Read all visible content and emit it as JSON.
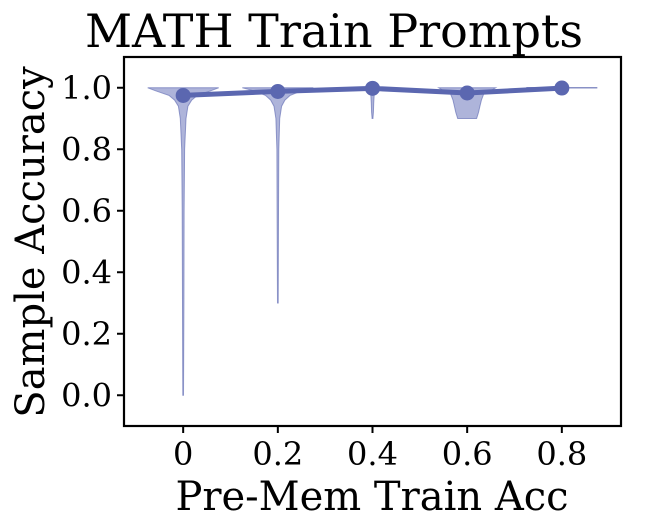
{
  "chart_data": {
    "type": "violin",
    "title": "MATH Train Prompts",
    "xlabel": "Pre-Mem Train Acc",
    "ylabel": "Sample Accuracy",
    "xlim": [
      -0.125,
      0.925
    ],
    "ylim": [
      -0.1,
      1.1
    ],
    "x_ticks": [
      "0",
      "0.2",
      "0.4",
      "0.6",
      "0.8"
    ],
    "y_ticks": [
      "0.0",
      "0.2",
      "0.4",
      "0.6",
      "0.8",
      "1.0"
    ],
    "grid": false,
    "legend": "none",
    "series": [
      {
        "type": "line",
        "x": [
          0.0,
          0.2,
          0.4,
          0.6,
          0.8
        ],
        "y": [
          0.975,
          0.988,
          0.998,
          0.983,
          0.999
        ]
      }
    ],
    "violins": [
      {
        "x": 0.0,
        "min": 0.0,
        "max": 1.0,
        "profile": [
          [
            1.0,
            0.075
          ],
          [
            0.99,
            0.058
          ],
          [
            0.975,
            0.03
          ],
          [
            0.96,
            0.018
          ],
          [
            0.94,
            0.01
          ],
          [
            0.9,
            0.006
          ],
          [
            0.8,
            0.003
          ],
          [
            0.6,
            0.002
          ],
          [
            0.3,
            0.0015
          ],
          [
            0.0,
            0.0008
          ]
        ]
      },
      {
        "x": 0.2,
        "min": 0.3,
        "max": 1.0,
        "profile": [
          [
            1.0,
            0.075
          ],
          [
            0.99,
            0.05
          ],
          [
            0.975,
            0.026
          ],
          [
            0.96,
            0.015
          ],
          [
            0.94,
            0.008
          ],
          [
            0.9,
            0.004
          ],
          [
            0.8,
            0.002
          ],
          [
            0.6,
            0.0015
          ],
          [
            0.3,
            0.0008
          ]
        ]
      },
      {
        "x": 0.4,
        "min": 0.9,
        "max": 1.0,
        "profile": [
          [
            1.0,
            0.012
          ],
          [
            0.99,
            0.004
          ],
          [
            0.95,
            0.0025
          ],
          [
            0.92,
            0.002
          ],
          [
            0.9,
            0.0008
          ]
        ]
      },
      {
        "x": 0.6,
        "min": 0.9,
        "max": 1.0,
        "profile": [
          [
            1.0,
            0.06
          ],
          [
            0.99,
            0.05
          ],
          [
            0.98,
            0.035
          ],
          [
            0.96,
            0.03
          ],
          [
            0.94,
            0.027
          ],
          [
            0.92,
            0.024
          ],
          [
            0.9,
            0.02
          ]
        ]
      },
      {
        "x": 0.8,
        "min": 1.0,
        "max": 1.0,
        "profile": [
          [
            1.0,
            0.075
          ]
        ]
      }
    ],
    "colors": {
      "line": "#5b67b0",
      "violin_fill": "#8f97cc",
      "violin_edge": "#6b75b8"
    }
  }
}
